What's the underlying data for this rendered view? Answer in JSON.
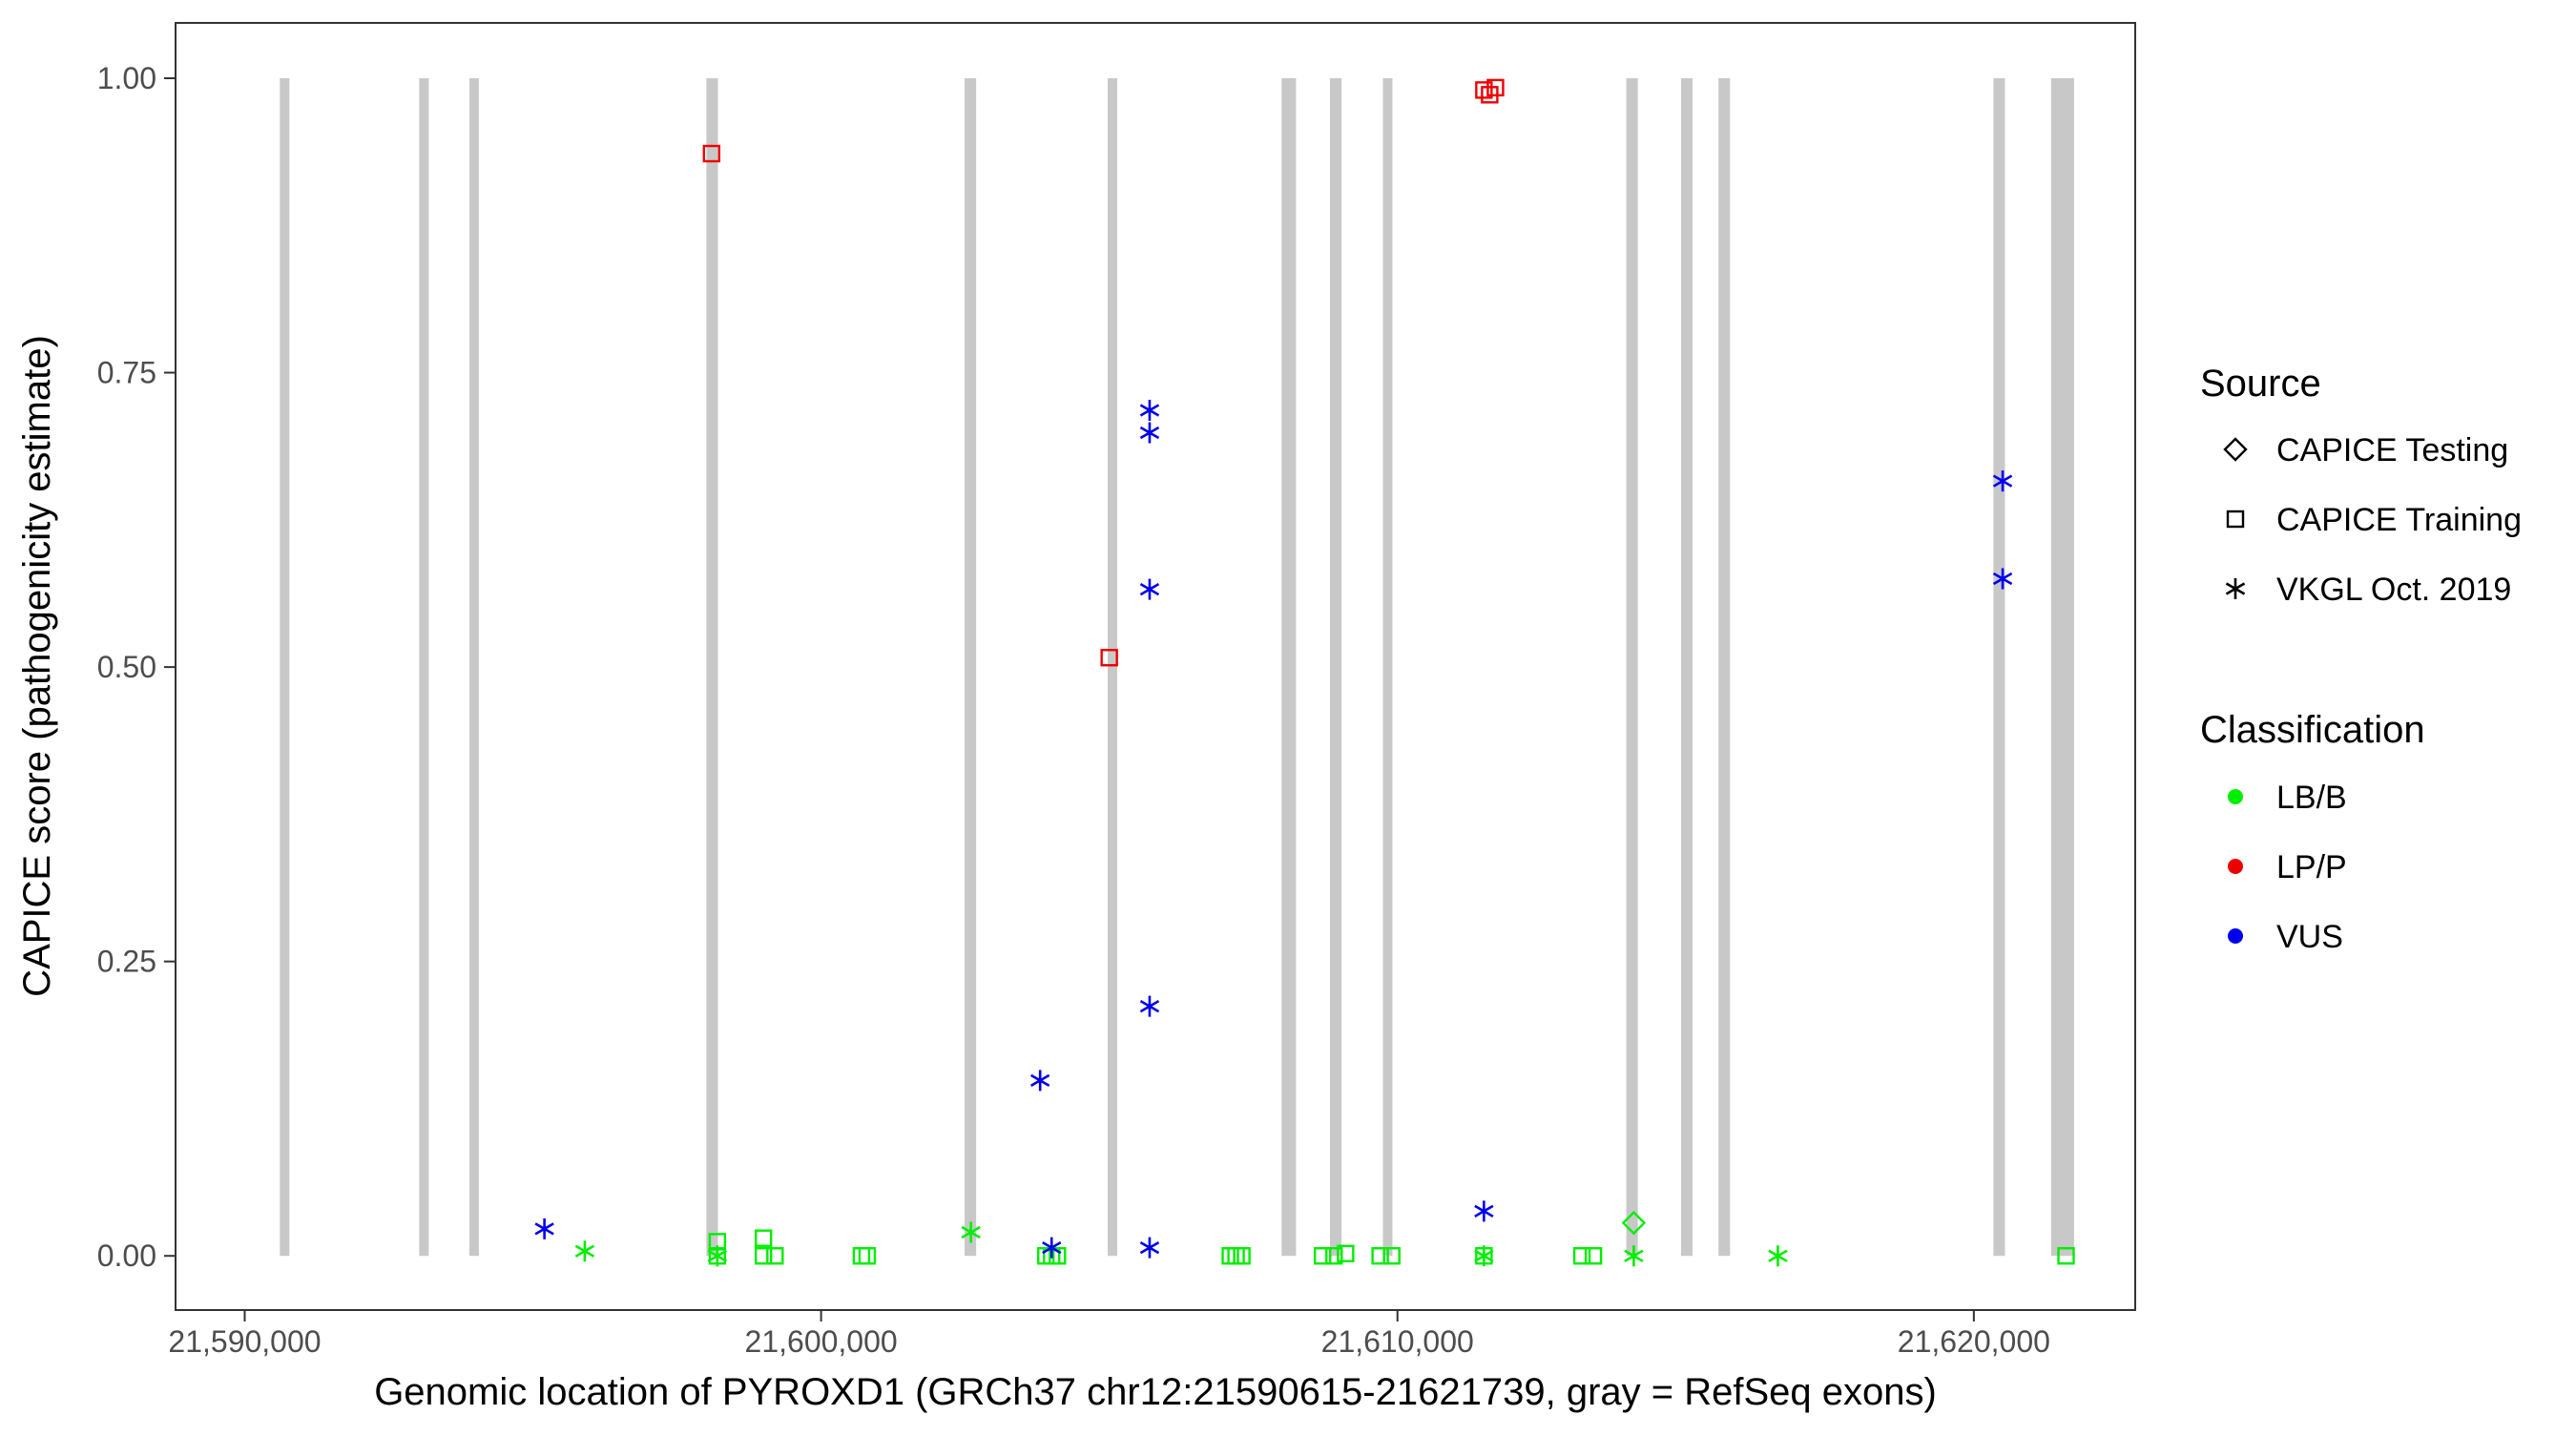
{
  "chart_data": {
    "type": "scatter",
    "title": "",
    "xlabel": "Genomic location of PYROXD1 (GRCh37 chr12:21590615-21621739, gray = RefSeq exons)",
    "ylabel": "CAPICE score (pathogenicity estimate)",
    "xlim": [
      21588800,
      21622800
    ],
    "ylim": [
      -0.046,
      1.047
    ],
    "x_ticks": [
      21590000,
      21600000,
      21610000,
      21620000
    ],
    "x_tick_labels": [
      "21,590,000",
      "21,600,000",
      "21,610,000",
      "21,620,000"
    ],
    "y_ticks": [
      0,
      0.25,
      0.5,
      0.75,
      1.0
    ],
    "y_tick_labels": [
      "0.00",
      "0.25",
      "0.50",
      "0.75",
      "1.00"
    ],
    "grid": false,
    "legend_position": "right",
    "legends": {
      "source": {
        "title": "Source",
        "items": [
          {
            "label": "CAPICE Testing",
            "shape": "diamond"
          },
          {
            "label": "CAPICE Training",
            "shape": "square"
          },
          {
            "label": "VKGL Oct. 2019",
            "shape": "asterisk"
          }
        ]
      },
      "classification": {
        "title": "Classification",
        "items": [
          {
            "label": "LB/B",
            "color": "#00ee00"
          },
          {
            "label": "LP/P",
            "color": "#ee0000"
          },
          {
            "label": "VUS",
            "color": "#0000ee"
          }
        ]
      }
    },
    "exons": [
      [
        21590615,
        21590770
      ],
      [
        21593035,
        21593185
      ],
      [
        21593930,
        21594030
      ],
      [
        21598010,
        21598210
      ],
      [
        21602490,
        21602690
      ],
      [
        21604980,
        21605130
      ],
      [
        21607990,
        21608240
      ],
      [
        21608830,
        21609030
      ],
      [
        21609780,
        21609880
      ],
      [
        21613970,
        21614170
      ],
      [
        21614920,
        21615120
      ],
      [
        21615570,
        21615770
      ],
      [
        21620340,
        21620540
      ],
      [
        21621340,
        21621739
      ]
    ],
    "series": [
      {
        "source": "CAPICE Testing",
        "classification": "LB/B",
        "points": [
          [
            21614100,
            0.028
          ]
        ]
      },
      {
        "source": "CAPICE Training",
        "classification": "LB/B",
        "points": [
          [
            21598200,
            0.012
          ],
          [
            21598200,
            0.0
          ],
          [
            21599000,
            0.015
          ],
          [
            21599000,
            0.0
          ],
          [
            21599200,
            0.0
          ],
          [
            21600700,
            0.0
          ],
          [
            21600800,
            0.0
          ],
          [
            21603900,
            0.0
          ],
          [
            21604000,
            0.0
          ],
          [
            21604100,
            0.0
          ],
          [
            21607100,
            0.0
          ],
          [
            21607200,
            0.0
          ],
          [
            21607300,
            0.0
          ],
          [
            21608700,
            0.0
          ],
          [
            21608900,
            0.0
          ],
          [
            21609100,
            0.002
          ],
          [
            21609700,
            0.0
          ],
          [
            21609900,
            0.0
          ],
          [
            21611500,
            0.0
          ],
          [
            21613200,
            0.0
          ],
          [
            21613400,
            0.0
          ],
          [
            21621600,
            0.0
          ]
        ]
      },
      {
        "source": "CAPICE Training",
        "classification": "LP/P",
        "points": [
          [
            21598100,
            0.936
          ],
          [
            21605000,
            0.508
          ],
          [
            21611500,
            0.99
          ],
          [
            21611600,
            0.986
          ],
          [
            21611700,
            0.992
          ]
        ]
      },
      {
        "source": "VKGL Oct. 2019",
        "classification": "LB/B",
        "points": [
          [
            21595900,
            0.004
          ],
          [
            21598200,
            0.0
          ],
          [
            21602600,
            0.02
          ],
          [
            21611500,
            0.0
          ],
          [
            21614100,
            0.0
          ],
          [
            21616600,
            0.0
          ]
        ]
      },
      {
        "source": "VKGL Oct. 2019",
        "classification": "VUS",
        "points": [
          [
            21595200,
            0.023
          ],
          [
            21603800,
            0.149
          ],
          [
            21604000,
            0.007
          ],
          [
            21605700,
            0.718
          ],
          [
            21605700,
            0.699
          ],
          [
            21605700,
            0.566
          ],
          [
            21605700,
            0.212
          ],
          [
            21605700,
            0.007
          ],
          [
            21611500,
            0.038
          ],
          [
            21620500,
            0.658
          ],
          [
            21620500,
            0.575
          ]
        ]
      }
    ]
  }
}
